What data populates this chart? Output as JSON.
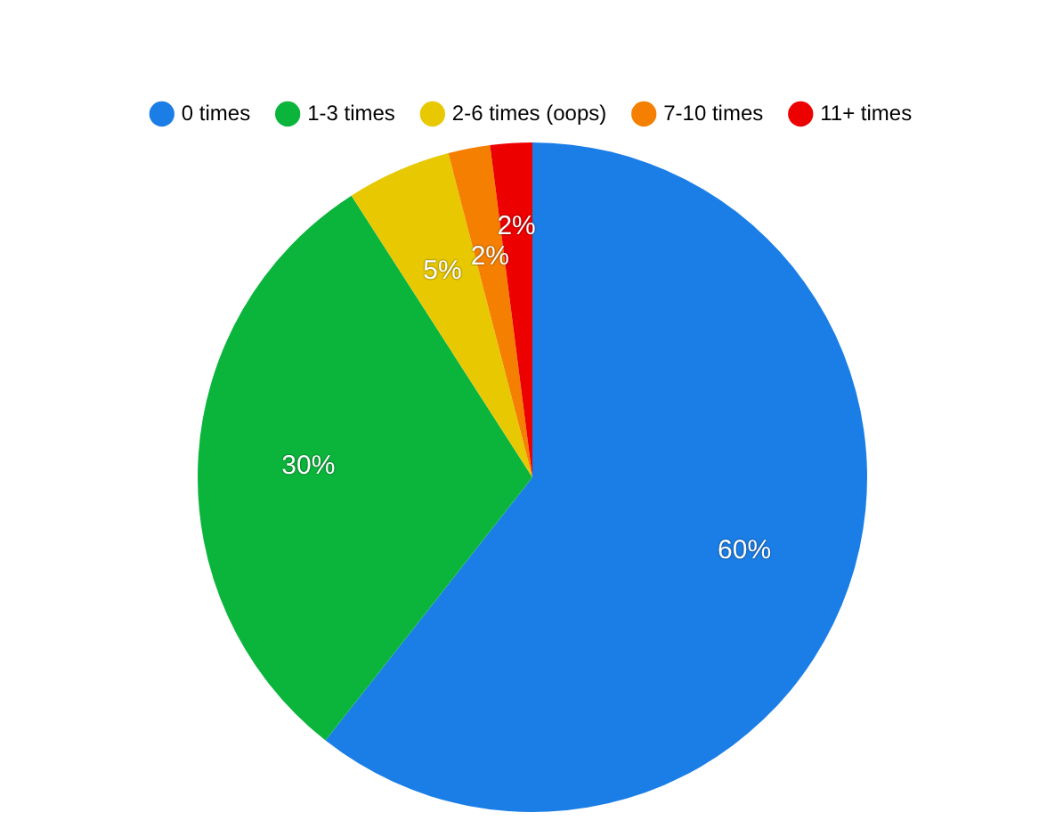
{
  "chart_data": {
    "type": "pie",
    "categories": [
      "0 times",
      "1-3 times",
      "2-6 times (oops)",
      "7-10 times",
      "11+ times"
    ],
    "values": [
      60,
      30,
      5,
      2,
      2
    ],
    "colors": [
      "#1a7ee6",
      "#0bb53c",
      "#e8c800",
      "#f57f00",
      "#ec0000"
    ],
    "value_labels": [
      "60%",
      "30%",
      "5%",
      "2%",
      "2%"
    ],
    "legend": "top"
  }
}
